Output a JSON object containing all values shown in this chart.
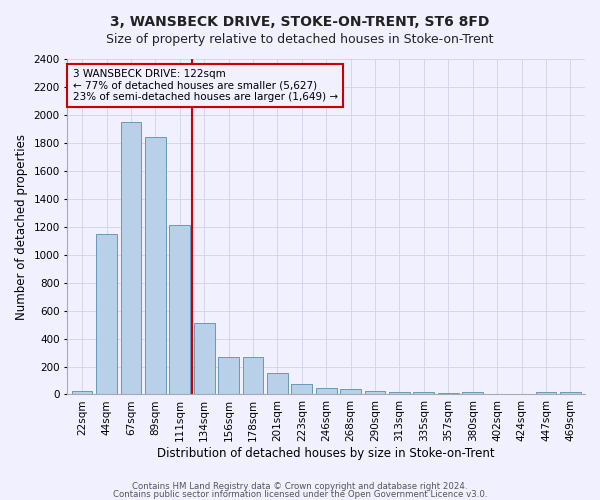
{
  "title": "3, WANSBECK DRIVE, STOKE-ON-TRENT, ST6 8FD",
  "subtitle": "Size of property relative to detached houses in Stoke-on-Trent",
  "xlabel": "Distribution of detached houses by size in Stoke-on-Trent",
  "ylabel": "Number of detached properties",
  "categories": [
    "22sqm",
    "44sqm",
    "67sqm",
    "89sqm",
    "111sqm",
    "134sqm",
    "156sqm",
    "178sqm",
    "201sqm",
    "223sqm",
    "246sqm",
    "268sqm",
    "290sqm",
    "313sqm",
    "335sqm",
    "357sqm",
    "380sqm",
    "402sqm",
    "424sqm",
    "447sqm",
    "469sqm"
  ],
  "values": [
    25,
    1150,
    1950,
    1840,
    1210,
    510,
    265,
    265,
    155,
    75,
    45,
    42,
    22,
    20,
    15,
    10,
    20,
    5,
    5,
    20,
    15
  ],
  "bar_color": "#b8d0e8",
  "bar_edge_color": "#6699bb",
  "vline_x": 4.5,
  "vline_color": "#cc0000",
  "annotation_text": "3 WANSBECK DRIVE: 122sqm\n← 77% of detached houses are smaller (5,627)\n23% of semi-detached houses are larger (1,649) →",
  "annotation_box_color": "#cc0000",
  "ylim": [
    0,
    2400
  ],
  "yticks": [
    0,
    200,
    400,
    600,
    800,
    1000,
    1200,
    1400,
    1600,
    1800,
    2000,
    2200,
    2400
  ],
  "grid_color": "#d0d0e8",
  "background_color": "#f0f0ff",
  "footnote1": "Contains HM Land Registry data © Crown copyright and database right 2024.",
  "footnote2": "Contains public sector information licensed under the Open Government Licence v3.0.",
  "title_fontsize": 10,
  "subtitle_fontsize": 9,
  "xlabel_fontsize": 8.5,
  "ylabel_fontsize": 8.5,
  "tick_fontsize": 7.5,
  "annot_fontsize": 7.5
}
